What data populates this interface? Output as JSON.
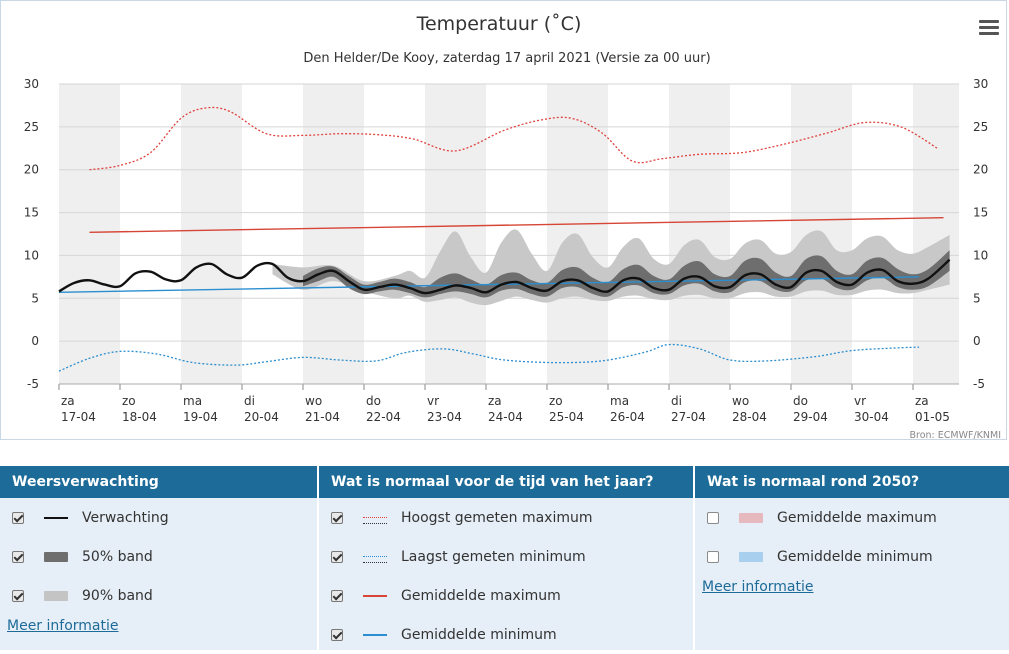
{
  "chart": {
    "title": "Temperatuur (˚C)",
    "subtitle": "Den Helder/De Kooy, zaterdag 17 april 2021 (Versie za 00 uur)",
    "credit": "Bron: ECMWF/KNMI"
  },
  "chart_data": {
    "type": "line",
    "title": "Temperatuur (˚C)",
    "subtitle": "Den Helder/De Kooy, zaterdag 17 april 2021 (Versie za 00 uur)",
    "ylim": [
      -5,
      30
    ],
    "yticks": [
      -5,
      0,
      5,
      10,
      15,
      20,
      25,
      30
    ],
    "x_range": [
      0,
      14.6
    ],
    "x_unit": "days since 17-04",
    "day_labels": [
      {
        "day": "za",
        "date": "17-04"
      },
      {
        "day": "zo",
        "date": "18-04"
      },
      {
        "day": "ma",
        "date": "19-04"
      },
      {
        "day": "di",
        "date": "20-04"
      },
      {
        "day": "wo",
        "date": "21-04"
      },
      {
        "day": "do",
        "date": "22-04"
      },
      {
        "day": "vr",
        "date": "23-04"
      },
      {
        "day": "za",
        "date": "24-04"
      },
      {
        "day": "zo",
        "date": "25-04"
      },
      {
        "day": "ma",
        "date": "26-04"
      },
      {
        "day": "di",
        "date": "27-04"
      },
      {
        "day": "wo",
        "date": "28-04"
      },
      {
        "day": "do",
        "date": "29-04"
      },
      {
        "day": "vr",
        "date": "30-04"
      },
      {
        "day": "za",
        "date": "01-05"
      }
    ],
    "series": [
      {
        "name": "Hoogst gemeten maximum",
        "color": "#e0413b",
        "style": "dotted",
        "x": [
          0.5,
          1,
          1.5,
          2,
          2.4,
          2.8,
          3.4,
          4,
          4.6,
          5.2,
          5.8,
          6.5,
          7.3,
          7.9,
          8.4,
          8.9,
          9.4,
          9.9,
          10.5,
          11.2,
          11.9,
          12.6,
          13.2,
          13.8,
          14.4
        ],
        "y": [
          20.0,
          20.5,
          22.0,
          26.0,
          27.2,
          26.8,
          24.2,
          24.0,
          24.2,
          24.1,
          23.6,
          22.2,
          24.6,
          25.8,
          26.0,
          24.3,
          21.0,
          21.3,
          21.8,
          22.0,
          23.0,
          24.3,
          25.5,
          25.0,
          22.5
        ]
      },
      {
        "name": "Laagst gemeten minimum",
        "color": "#2b8ed0",
        "style": "dotted",
        "x": [
          0,
          0.5,
          1,
          1.6,
          2.2,
          2.9,
          3.4,
          4,
          4.6,
          5.2,
          5.7,
          6.3,
          6.8,
          7.3,
          8.1,
          8.9,
          9.6,
          10,
          10.5,
          11,
          11.6,
          12.4,
          13,
          13.7,
          14.1
        ],
        "y": [
          -3.5,
          -2.0,
          -1.2,
          -1.5,
          -2.5,
          -2.8,
          -2.4,
          -1.9,
          -2.2,
          -2.3,
          -1.3,
          -0.9,
          -1.5,
          -2.2,
          -2.5,
          -2.3,
          -1.3,
          -0.4,
          -0.9,
          -2.2,
          -2.3,
          -1.8,
          -1.1,
          -0.8,
          -0.7
        ]
      },
      {
        "name": "Gemiddelde maximum",
        "color": "#d64535",
        "style": "solid",
        "x": [
          0.5,
          14.5
        ],
        "y": [
          12.7,
          14.4
        ]
      },
      {
        "name": "Gemiddelde minimum",
        "color": "#2b8ed0",
        "style": "solid",
        "x": [
          0,
          14.1
        ],
        "y": [
          5.7,
          7.5
        ]
      },
      {
        "name": "Verwachting",
        "color": "#111111",
        "style": "solid",
        "x": [
          0,
          0.25,
          0.5,
          0.75,
          1,
          1.25,
          1.5,
          1.75,
          2,
          2.25,
          2.5,
          2.75,
          3,
          3.25,
          3.5,
          3.75,
          4,
          4.25,
          4.5,
          4.75,
          5,
          5.25,
          5.5,
          5.75,
          6,
          6.25,
          6.5,
          6.75,
          7,
          7.25,
          7.5,
          7.75,
          8,
          8.25,
          8.5,
          8.75,
          9,
          9.25,
          9.5,
          9.75,
          10,
          10.25,
          10.5,
          10.75,
          11,
          11.25,
          11.5,
          11.75,
          12,
          12.25,
          12.5,
          12.75,
          13,
          13.25,
          13.5,
          13.75,
          14,
          14.25,
          14.6
        ],
        "y": [
          5.8,
          6.8,
          7.1,
          6.6,
          6.4,
          7.9,
          8.1,
          7.2,
          7.1,
          8.6,
          9.0,
          7.8,
          7.4,
          8.8,
          9.0,
          7.4,
          7.0,
          7.8,
          8.2,
          7.0,
          6.0,
          6.3,
          6.6,
          6.2,
          5.6,
          6.0,
          6.5,
          6.2,
          5.7,
          6.6,
          6.9,
          6.2,
          5.9,
          7.0,
          7.1,
          6.2,
          5.8,
          7.1,
          7.3,
          6.2,
          6.0,
          7.3,
          7.5,
          6.4,
          6.3,
          7.7,
          7.8,
          6.6,
          6.3,
          8.0,
          8.2,
          6.9,
          6.6,
          8.0,
          8.3,
          7.0,
          6.7,
          7.3,
          9.5
        ]
      }
    ],
    "bands": [
      {
        "name": "90% band",
        "color": "#c8c8c8",
        "x": [
          3.5,
          4,
          4.5,
          5,
          5.5,
          5.75,
          6,
          6.25,
          6.5,
          6.75,
          7,
          7.25,
          7.5,
          7.75,
          8,
          8.25,
          8.5,
          8.75,
          9,
          9.25,
          9.5,
          9.75,
          10,
          10.25,
          10.5,
          10.75,
          11,
          11.25,
          11.5,
          11.75,
          12,
          12.25,
          12.5,
          12.75,
          13,
          13.25,
          13.5,
          13.75,
          14,
          14.25,
          14.6
        ],
        "low": [
          7.8,
          6.0,
          7.0,
          5.8,
          5.0,
          5.3,
          4.6,
          4.8,
          5.1,
          4.5,
          4.2,
          4.7,
          5.2,
          4.8,
          4.5,
          5.0,
          5.2,
          4.8,
          4.7,
          5.2,
          5.3,
          4.9,
          4.8,
          5.3,
          5.4,
          5.0,
          5.0,
          5.6,
          5.7,
          5.2,
          5.2,
          5.8,
          5.9,
          5.4,
          5.4,
          5.9,
          6.0,
          5.6,
          5.6,
          6.0,
          6.6
        ],
        "high": [
          9.0,
          8.6,
          8.8,
          7.0,
          7.6,
          8.2,
          7.4,
          10.5,
          12.8,
          9.8,
          8.0,
          11.5,
          13.0,
          10.2,
          8.2,
          11.5,
          12.5,
          9.8,
          8.6,
          11.0,
          12.0,
          9.6,
          9.0,
          11.2,
          11.8,
          9.8,
          9.6,
          11.4,
          11.8,
          10.2,
          10.4,
          12.4,
          12.8,
          10.6,
          10.6,
          12.0,
          12.2,
          10.6,
          10.2,
          11.0,
          12.4
        ]
      },
      {
        "name": "50% band",
        "color": "#6e6e6e",
        "x": [
          4,
          4.25,
          4.5,
          4.75,
          5,
          5.25,
          5.5,
          5.75,
          6,
          6.25,
          6.5,
          6.75,
          7,
          7.25,
          7.5,
          7.75,
          8,
          8.25,
          8.5,
          8.75,
          9,
          9.25,
          9.5,
          9.75,
          10,
          10.25,
          10.5,
          10.75,
          11,
          11.25,
          11.5,
          11.75,
          12,
          12.25,
          12.5,
          12.75,
          13,
          13.25,
          13.5,
          13.75,
          14,
          14.25,
          14.6
        ],
        "low": [
          6.4,
          7.0,
          7.5,
          6.2,
          5.5,
          5.8,
          6.0,
          5.6,
          5.1,
          5.5,
          5.8,
          5.5,
          5.1,
          5.9,
          6.1,
          5.5,
          5.2,
          6.2,
          6.3,
          5.5,
          5.2,
          6.3,
          6.5,
          5.6,
          5.5,
          6.5,
          6.7,
          5.8,
          5.7,
          6.9,
          7.0,
          6.0,
          5.8,
          7.1,
          7.3,
          6.2,
          6.0,
          7.1,
          7.4,
          6.3,
          6.0,
          6.4,
          8.2
        ],
        "high": [
          7.6,
          8.5,
          8.7,
          7.6,
          6.6,
          6.9,
          7.3,
          6.9,
          6.3,
          7.4,
          7.9,
          7.2,
          6.6,
          7.7,
          8.0,
          7.1,
          6.8,
          8.3,
          8.6,
          7.4,
          6.9,
          8.4,
          8.9,
          7.6,
          7.2,
          8.8,
          9.3,
          7.8,
          7.6,
          9.4,
          9.6,
          8.0,
          7.6,
          9.6,
          9.9,
          8.2,
          7.8,
          9.4,
          9.7,
          8.4,
          7.8,
          8.4,
          10.6
        ]
      }
    ]
  },
  "legend": {
    "columns": [
      {
        "title": "Weersverwachting",
        "items": [
          {
            "label": "Verwachting",
            "checked": true,
            "swatch": "line",
            "color": "#111111"
          },
          {
            "label": "50% band",
            "checked": true,
            "swatch": "box",
            "color": "#6e6e6e"
          },
          {
            "label": "90% band",
            "checked": true,
            "swatch": "box",
            "color": "#c4c4c4"
          }
        ],
        "link": "Meer informatie"
      },
      {
        "title": "Wat is normaal voor de tijd van het jaar?",
        "items": [
          {
            "label": "Hoogst gemeten maximum",
            "checked": true,
            "swatch": "dot",
            "color": "#e0413b"
          },
          {
            "label": "Laagst gemeten minimum",
            "checked": true,
            "swatch": "dot",
            "color": "#2b8ed0"
          },
          {
            "label": "Gemiddelde maximum",
            "checked": true,
            "swatch": "line",
            "color": "#d64535"
          },
          {
            "label": "Gemiddelde minimum",
            "checked": true,
            "swatch": "line",
            "color": "#2b8ed0"
          }
        ],
        "link": ""
      },
      {
        "title": "Wat is normaal rond 2050?",
        "items": [
          {
            "label": "Gemiddelde maximum",
            "checked": false,
            "swatch": "box",
            "color": "#e6b9bf"
          },
          {
            "label": "Gemiddelde minimum",
            "checked": false,
            "swatch": "box",
            "color": "#a8d0ee"
          }
        ],
        "link": "Meer informatie"
      }
    ]
  }
}
